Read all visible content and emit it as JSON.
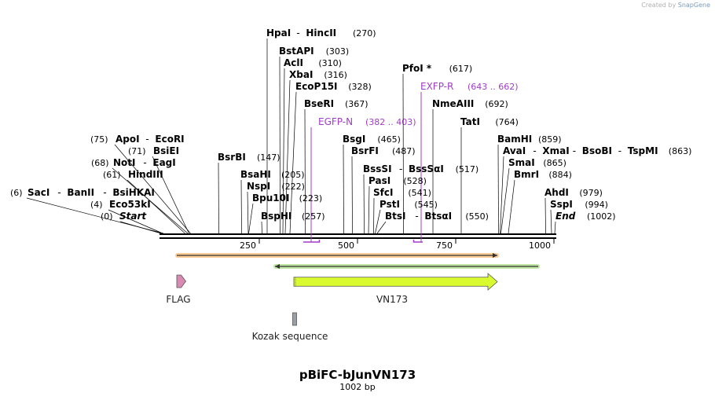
{
  "credit": {
    "prefix": "Created by ",
    "brand": "SnapGene"
  },
  "plasmid": {
    "name": "pBiFC-bJunVN173",
    "length_label": "1002 bp",
    "length": 1002
  },
  "ruler": {
    "ticks": [
      250,
      500,
      750,
      1000
    ]
  },
  "ends": {
    "start": {
      "pos": 0,
      "label": "Start"
    },
    "end": {
      "pos": 1002,
      "label": "End"
    }
  },
  "enzymes": [
    {
      "names": [
        "SacI",
        "BanII",
        "BsiHKAI"
      ],
      "pos": 6
    },
    {
      "names": [
        "Eco53kI"
      ],
      "pos": 4
    },
    {
      "names": [
        "ApoI",
        "EcoRI"
      ],
      "pos": 75
    },
    {
      "names": [
        "BsiEI"
      ],
      "pos": 71
    },
    {
      "names": [
        "NotI",
        "EagI"
      ],
      "pos": 68
    },
    {
      "names": [
        "HindIII"
      ],
      "pos": 61
    },
    {
      "names": [
        "BsrBI"
      ],
      "pos": 147
    },
    {
      "names": [
        "BsaHI"
      ],
      "pos": 205
    },
    {
      "names": [
        "NspI"
      ],
      "pos": 222
    },
    {
      "names": [
        "Bpu10I"
      ],
      "pos": 223
    },
    {
      "names": [
        "BspHI"
      ],
      "pos": 257
    },
    {
      "names": [
        "HpaI",
        "HincII"
      ],
      "pos": 270
    },
    {
      "names": [
        "BstAPI"
      ],
      "pos": 303
    },
    {
      "names": [
        "AclI"
      ],
      "pos": 310
    },
    {
      "names": [
        "XbaI"
      ],
      "pos": 316
    },
    {
      "names": [
        "EcoP15I"
      ],
      "pos": 328
    },
    {
      "names": [
        "BseRI"
      ],
      "pos": 367
    },
    {
      "names": [
        "BsgI"
      ],
      "pos": 465
    },
    {
      "names": [
        "BsrFI"
      ],
      "pos": 487
    },
    {
      "names": [
        "BssSI",
        "BssSαI"
      ],
      "pos": 517
    },
    {
      "names": [
        "PasI"
      ],
      "pos": 528
    },
    {
      "names": [
        "SfcI"
      ],
      "pos": 541
    },
    {
      "names": [
        "PstI"
      ],
      "pos": 545
    },
    {
      "names": [
        "BtsI",
        "BtsαI"
      ],
      "pos": 550
    },
    {
      "names": [
        "PfoI *"
      ],
      "pos": 617
    },
    {
      "names": [
        "NmeAIII"
      ],
      "pos": 692
    },
    {
      "names": [
        "TatI"
      ],
      "pos": 764
    },
    {
      "names": [
        "BamHI"
      ],
      "pos": 859
    },
    {
      "names": [
        "AvaI",
        "XmaI",
        "BsoBI",
        "TspMI"
      ],
      "pos": 863
    },
    {
      "names": [
        "SmaI"
      ],
      "pos": 865
    },
    {
      "names": [
        "BmrI"
      ],
      "pos": 884
    },
    {
      "names": [
        "AhdI"
      ],
      "pos": 979
    },
    {
      "names": [
        "SspI"
      ],
      "pos": 994
    }
  ],
  "primers": [
    {
      "name": "EGFP-N",
      "range": "(382 .. 403)",
      "start": 382,
      "end": 403,
      "direction": "forward"
    },
    {
      "name": "EXFP-R",
      "range": "(643 .. 662)",
      "start": 643,
      "end": 662,
      "direction": "reverse"
    }
  ],
  "features": [
    {
      "name": "FLAG",
      "start": 40,
      "end": 63,
      "type": "cds",
      "direction": "forward",
      "color": "#d98ab2"
    },
    {
      "name": "VN173",
      "start": 338,
      "end": 856,
      "type": "cds",
      "direction": "forward",
      "color": "#d8fa2e"
    },
    {
      "name": "Kozak sequence",
      "start": 331,
      "end": 342,
      "type": "box",
      "direction": "none",
      "color": "#9aa0a6"
    }
  ],
  "orfs": [
    {
      "start": 40,
      "end": 856,
      "direction": "forward",
      "color": "#f5a340"
    },
    {
      "start": 290,
      "end": 960,
      "direction": "reverse",
      "color": "#8ed05a"
    }
  ]
}
